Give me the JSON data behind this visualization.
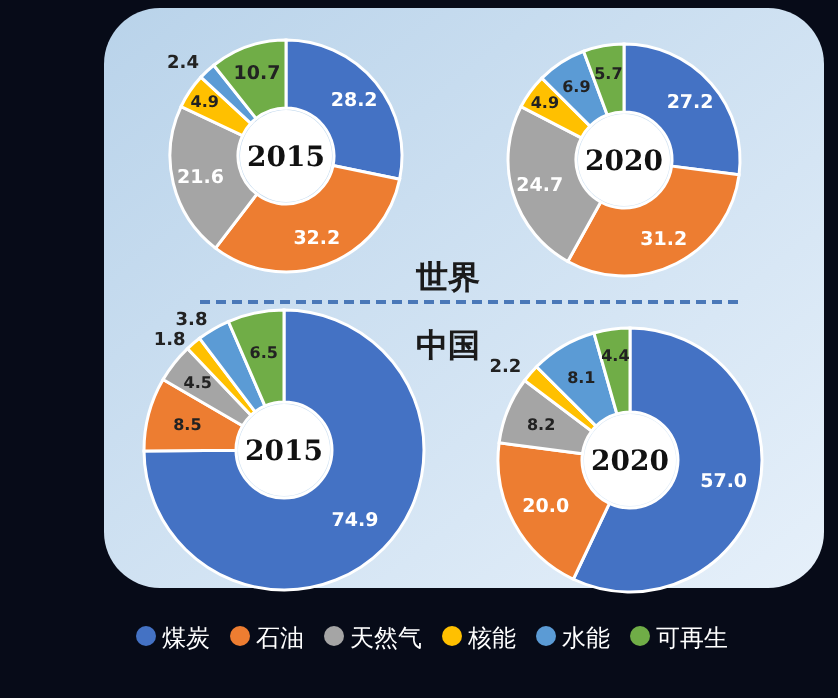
{
  "chart_data": [
    {
      "type": "donut",
      "title": "2015",
      "annotations": [
        "世界"
      ],
      "categories": [
        "煤炭",
        "石油",
        "天然气",
        "核能",
        "水能",
        "可再生"
      ],
      "values": [
        28.2,
        32.2,
        21.6,
        4.9,
        2.4,
        10.7
      ],
      "colors": [
        "#4472c4",
        "#ed7d31",
        "#a5a5a5",
        "#ffc000",
        "#5b9bd5",
        "#70ad47"
      ],
      "data_labels": true,
      "legend": "bottom"
    },
    {
      "type": "donut",
      "title": "2020",
      "categories": [
        null,
        null,
        null,
        null,
        null,
        null
      ],
      "values": [
        27.2,
        31.2,
        24.7,
        4.9,
        6.9,
        5.7
      ],
      "colors": [
        "#4472c4",
        "#ed7d31",
        "#a5a5a5",
        "#ffc000",
        "#5b9bd5",
        "#70ad47"
      ],
      "data_labels": true
    },
    {
      "type": "donut",
      "title": "2015",
      "annotations": [
        "中国"
      ],
      "categories": [
        null,
        null,
        null,
        null,
        null,
        null
      ],
      "values": [
        74.9,
        8.5,
        4.5,
        1.8,
        3.8,
        6.5
      ],
      "colors": [
        "#4472c4",
        "#ed7d31",
        "#a5a5a5",
        "#ffc000",
        "#5b9bd5",
        "#70ad47"
      ],
      "data_labels": true
    },
    {
      "type": "donut",
      "title": "2020",
      "categories": [
        null,
        null,
        null,
        null,
        null,
        null
      ],
      "values": [
        57.0,
        20.0,
        8.2,
        2.2,
        8.1,
        4.4
      ],
      "value_labels": [
        "57.0",
        "20.0",
        "8.2",
        "2.2",
        "8.1",
        "4.4"
      ],
      "colors": [
        "#4472c4",
        "#ed7d31",
        "#a5a5a5",
        "#ffc000",
        "#5b9bd5",
        "#70ad47"
      ]
    }
  ]
}
